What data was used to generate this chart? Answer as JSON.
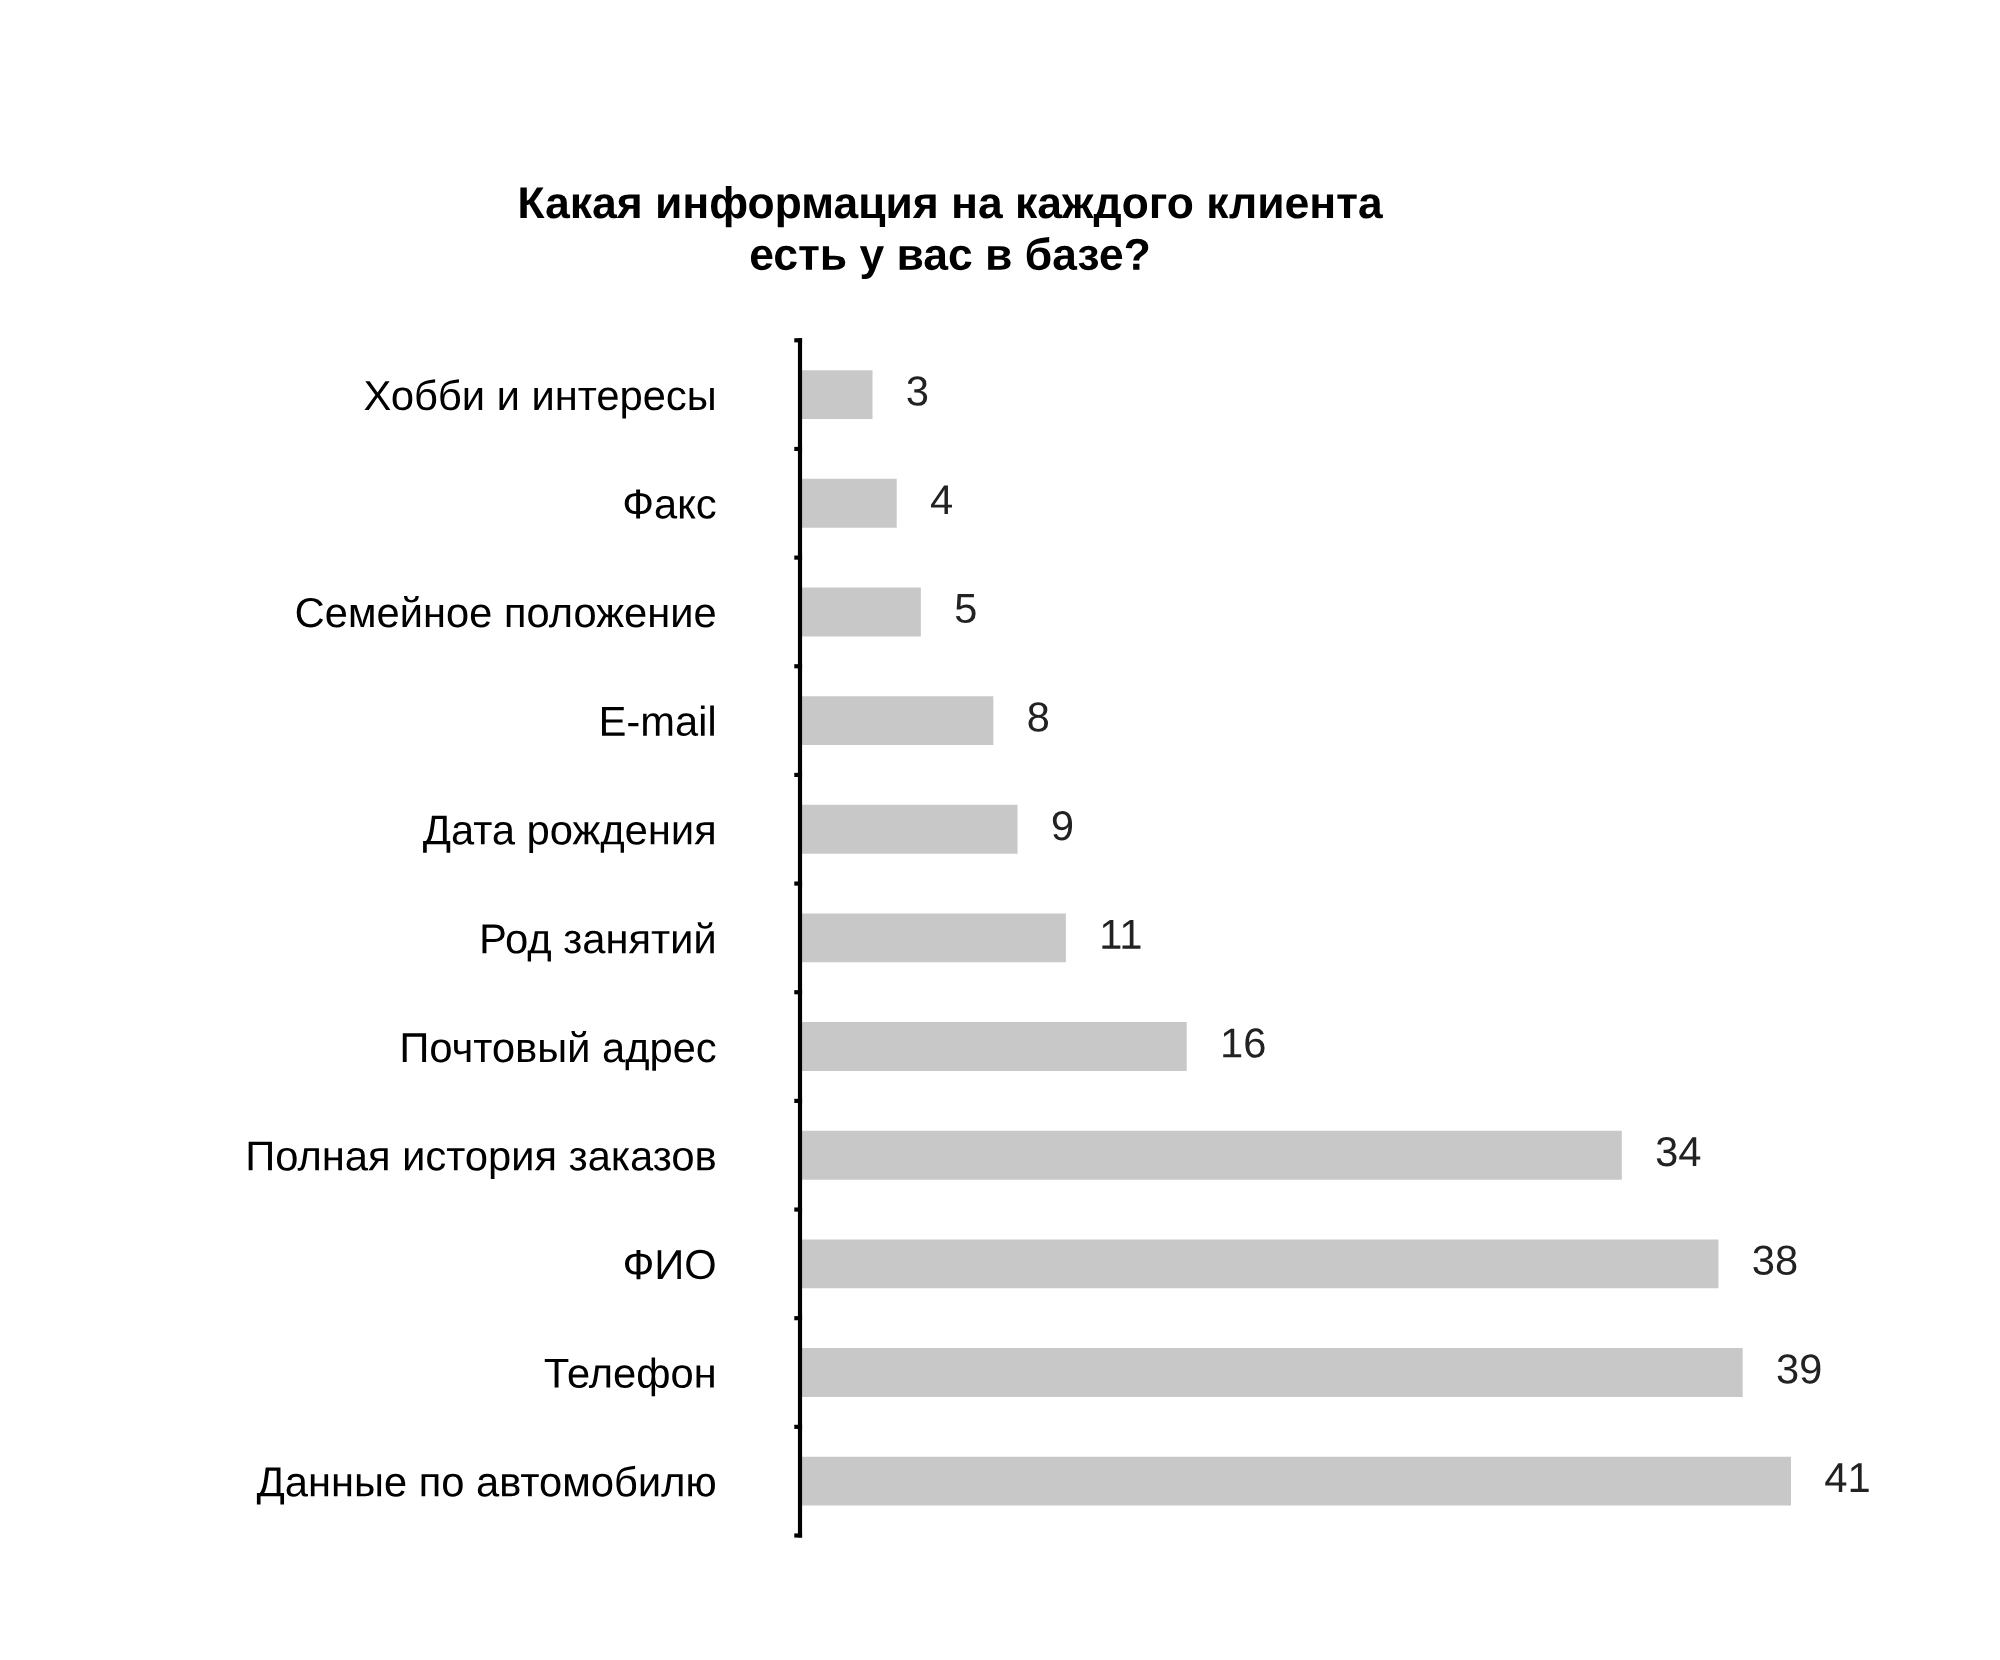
{
  "chart_data": {
    "type": "bar",
    "orientation": "horizontal",
    "title": "Какая информация на каждого клиента\nесть у вас в базе?",
    "categories": [
      "Хобби и интересы",
      "Факс",
      "Семейное положение",
      "E-mail",
      "Дата рождения",
      "Род занятий",
      "Почтовый адрес",
      "Полная история заказов",
      "ФИО",
      "Телефон",
      "Данные по автомобилю"
    ],
    "values": [
      3,
      4,
      5,
      8,
      9,
      11,
      16,
      34,
      38,
      39,
      41
    ],
    "color": "#c8c8c8",
    "data_labels": true
  }
}
